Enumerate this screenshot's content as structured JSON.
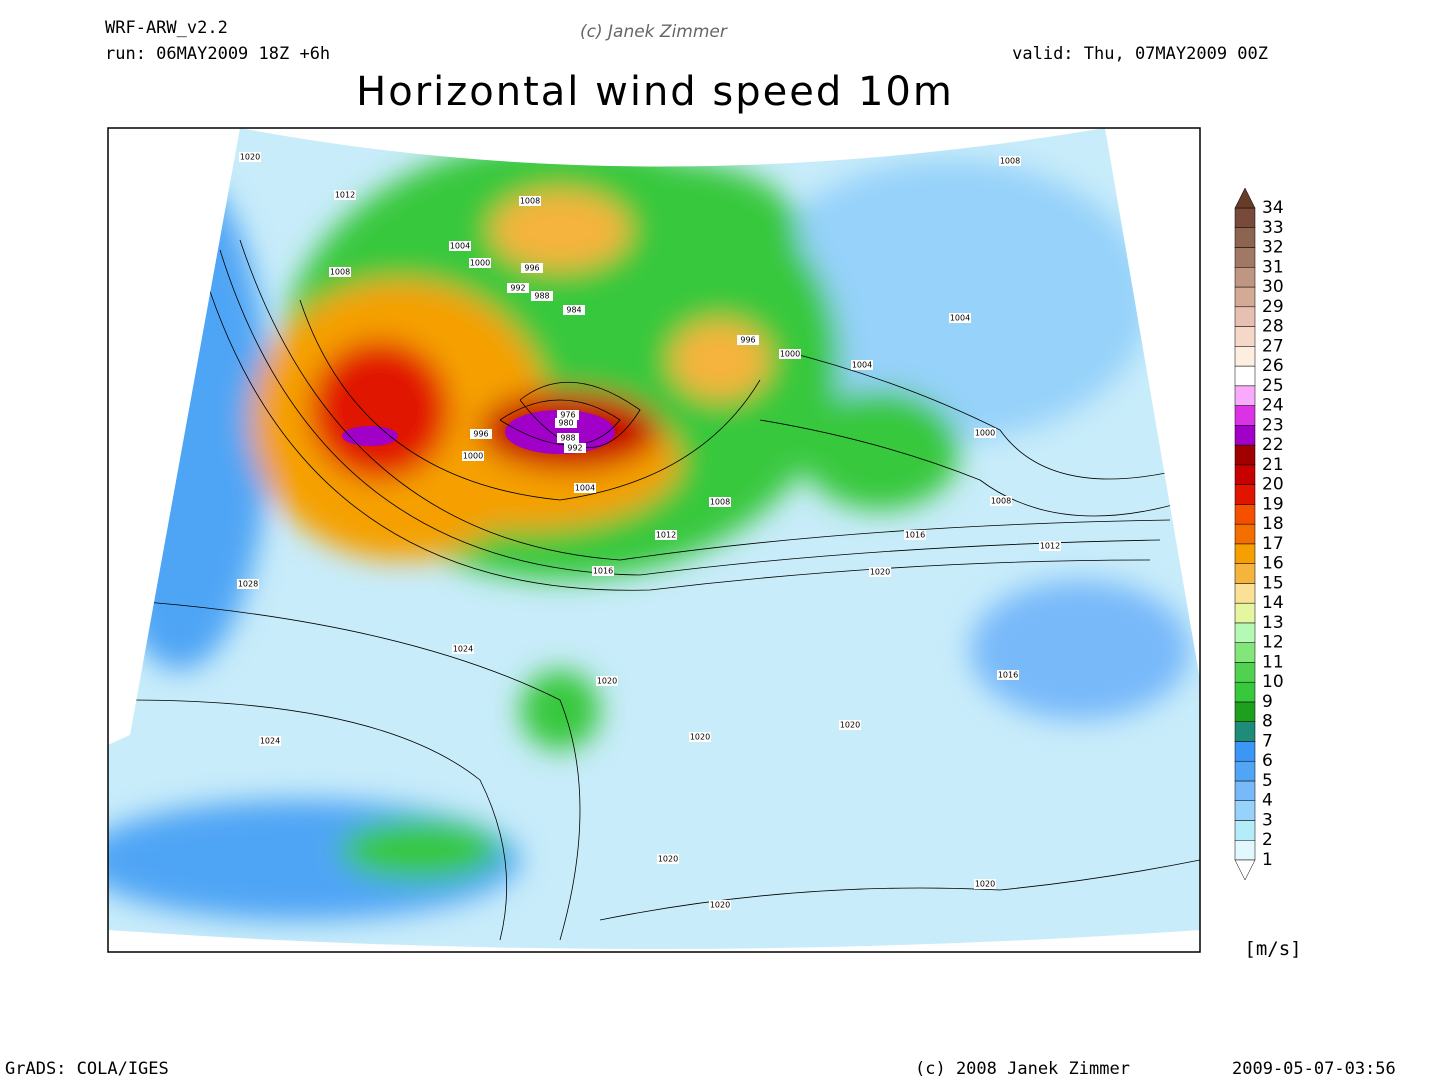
{
  "header": {
    "model": "WRF-ARW_v2.2",
    "run": "run: 06MAY2009 18Z +6h",
    "copyright": "(c) Janek Zimmer",
    "valid": "valid: Thu, 07MAY2009 00Z",
    "title": "Horizontal wind speed 10m"
  },
  "isobar_labels": [
    1020,
    1012,
    1008,
    1004,
    1000,
    996,
    992,
    988,
    984,
    1008,
    1008,
    1004,
    996,
    1000,
    1004,
    976,
    980,
    988,
    992,
    996,
    1000,
    1004,
    1000,
    1008,
    1008,
    1012,
    1016,
    1012,
    1016,
    1020,
    1028,
    1024,
    1020,
    1016,
    1024,
    1020,
    1020,
    1020,
    1020,
    1020
  ],
  "colorbar": {
    "levels": [
      1,
      2,
      3,
      4,
      5,
      6,
      7,
      8,
      9,
      10,
      11,
      12,
      13,
      14,
      15,
      16,
      17,
      18,
      19,
      20,
      21,
      22,
      23,
      24,
      25,
      26,
      27,
      28,
      29,
      30,
      31,
      32,
      33,
      34
    ],
    "colors": [
      "#e1f8ff",
      "#b4ecfa",
      "#96d2fa",
      "#78b9fa",
      "#50a5f5",
      "#3c96f5",
      "#1e8c78",
      "#1ea01e",
      "#37c83c",
      "#50d250",
      "#82e678",
      "#b4fab4",
      "#e6f5a0",
      "#fae196",
      "#f5b43c",
      "#f5a000",
      "#f56e00",
      "#f55000",
      "#e11400",
      "#c80000",
      "#a00000",
      "#a000c8",
      "#dc32e6",
      "#faaafa",
      "#ffffff",
      "#fdeee0",
      "#f5d8c8",
      "#e6c0b0",
      "#d2aa96",
      "#be9682",
      "#a07864",
      "#8c6450",
      "#784a3c"
    ],
    "below_color": "#ffffff",
    "above_color": "#643c28",
    "unit": "[m/s]"
  },
  "footer": {
    "left": "GrADS: COLA/IGES",
    "center": "(c) 2008 Janek Zimmer",
    "right": "2009-05-07-03:56"
  }
}
